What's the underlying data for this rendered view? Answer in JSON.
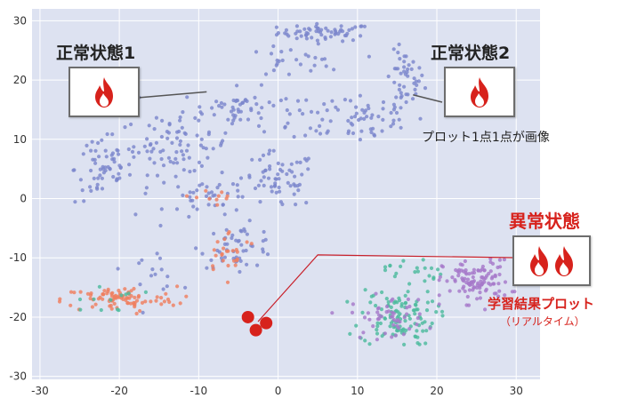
{
  "chart_data": {
    "type": "scatter",
    "title": "",
    "xlabel": "",
    "ylabel": "",
    "xlim": [
      -31,
      33
    ],
    "ylim": [
      -30.5,
      32
    ],
    "x_ticks": [
      "-30",
      "-20",
      "-10",
      "0",
      "10",
      "20",
      "30"
    ],
    "y_ticks": [
      "30",
      "20",
      "10",
      "0",
      "-10",
      "-20",
      "-30"
    ],
    "grid": true,
    "legend": "none",
    "series": [
      {
        "color": "#7b86cc",
        "clusters": [
          {
            "cx": 6,
            "cy": 28,
            "sx": 5,
            "sy": 1.2,
            "n": 60
          },
          {
            "cx": 16,
            "cy": 20,
            "sx": 2,
            "sy": 4,
            "n": 40
          },
          {
            "cx": 10,
            "cy": 14,
            "sx": 7,
            "sy": 4,
            "n": 70
          },
          {
            "cx": -5,
            "cy": 15,
            "sx": 6,
            "sy": 3,
            "n": 60
          },
          {
            "cx": -13,
            "cy": 9,
            "sx": 6,
            "sy": 4,
            "n": 80
          },
          {
            "cx": -22,
            "cy": 5,
            "sx": 3,
            "sy": 5,
            "n": 60
          },
          {
            "cx": 0,
            "cy": 3,
            "sx": 4,
            "sy": 4,
            "n": 60
          },
          {
            "cx": -8,
            "cy": 0,
            "sx": 5,
            "sy": 3,
            "n": 40
          },
          {
            "cx": -5,
            "cy": -8,
            "sx": 4,
            "sy": 3,
            "n": 50
          },
          {
            "cx": -16,
            "cy": -12,
            "sx": 3,
            "sy": 3,
            "n": 15
          },
          {
            "cx": 2,
            "cy": 23,
            "sx": 5,
            "sy": 2,
            "n": 25
          }
        ]
      },
      {
        "color": "#ef7f5f",
        "clusters": [
          {
            "cx": -20,
            "cy": -17,
            "sx": 6,
            "sy": 1.8,
            "n": 90
          },
          {
            "cx": -6,
            "cy": -9,
            "sx": 3,
            "sy": 3,
            "n": 25
          },
          {
            "cx": -8,
            "cy": 0,
            "sx": 2,
            "sy": 3,
            "n": 10
          }
        ]
      },
      {
        "color": "#4dbb9e",
        "clusters": [
          {
            "cx": 15,
            "cy": -20,
            "sx": 4,
            "sy": 4,
            "n": 110
          },
          {
            "cx": -22,
            "cy": -17,
            "sx": 4,
            "sy": 2,
            "n": 12
          },
          {
            "cx": 17,
            "cy": -12,
            "sx": 3,
            "sy": 2,
            "n": 20
          }
        ]
      },
      {
        "color": "#a679c9",
        "clusters": [
          {
            "cx": 25,
            "cy": -14,
            "sx": 3.5,
            "sy": 3,
            "n": 110
          },
          {
            "cx": 14,
            "cy": -20,
            "sx": 4,
            "sy": 3,
            "n": 50
          }
        ]
      }
    ],
    "anomaly_points": {
      "color": "#d7221c",
      "points": [
        [
          -3.8,
          -20
        ],
        [
          -2.8,
          -22.2
        ],
        [
          -1.5,
          -21
        ]
      ]
    },
    "annotations": [
      {
        "id": "normal1",
        "title": "正常状態1",
        "fire_icons": 1,
        "anchor_x": -9,
        "anchor_y": 18
      },
      {
        "id": "normal2",
        "title": "正常状態2",
        "fire_icons": 1,
        "anchor_x": 17,
        "anchor_y": 17.5,
        "note": "プロット1点1点が画像"
      },
      {
        "id": "anomaly",
        "title": "異常状態",
        "fire_icons": 2,
        "anchor_x": 5,
        "anchor_y": -9.5,
        "note": "学習結果プロット",
        "subnote": "（リアルタイム）"
      }
    ]
  },
  "colors": {
    "plot_background": "#dde2f1",
    "grid": "#ffffff",
    "fire_red": "#d7221c",
    "leader_gray": "#555555",
    "leader_red": "#c8202a"
  }
}
